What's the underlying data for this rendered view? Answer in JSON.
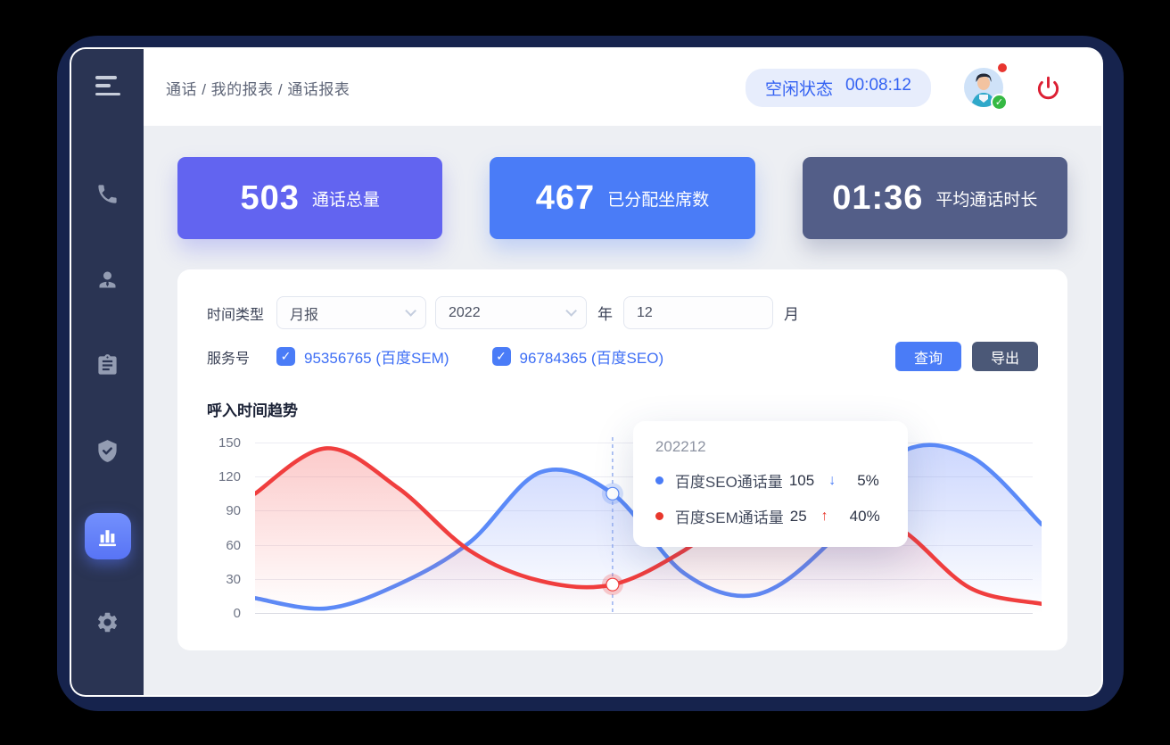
{
  "header": {
    "breadcrumb": "通话 / 我的报表 / 通话报表",
    "status_label": "空闲状态",
    "status_time": "00:08:12"
  },
  "sidebar": {
    "items": [
      {
        "icon": "menu-icon"
      },
      {
        "icon": "phone-icon"
      },
      {
        "icon": "agent-icon"
      },
      {
        "icon": "report-icon"
      },
      {
        "icon": "shield-check-icon"
      },
      {
        "icon": "bar-chart-icon",
        "active": true
      },
      {
        "icon": "gear-icon"
      }
    ]
  },
  "stats": [
    {
      "value": "503",
      "label": "通话总量",
      "color": "#6264f0"
    },
    {
      "value": "467",
      "label": "已分配坐席数",
      "color": "#4a7cf7"
    },
    {
      "value": "01:36",
      "label": "平均通话时长",
      "color": "#535e88"
    }
  ],
  "filters": {
    "time_type_label": "时间类型",
    "time_type_value": "月报",
    "year_value": "2022",
    "year_unit": "年",
    "month_value": "12",
    "month_unit": "月",
    "service_label": "服务号",
    "services": [
      {
        "label": "95356765 (百度SEM)",
        "checked": true
      },
      {
        "label": "96784365 (百度SEO)",
        "checked": true
      }
    ],
    "query_button": "查询",
    "export_button": "导出",
    "check_glyph": "✓"
  },
  "chart_data": {
    "type": "line",
    "title": "呼入时间趋势",
    "xlabel": "",
    "ylabel": "",
    "ylim": [
      0,
      150
    ],
    "yticks": [
      0,
      30,
      60,
      90,
      120,
      150
    ],
    "grid": true,
    "x_count": 12,
    "legend_position": "none",
    "series": [
      {
        "name": "百度SEO通话量",
        "color": "#5b8af8",
        "values": [
          13,
          4,
          25,
          62,
          124,
          105,
          35,
          16,
          60,
          140,
          138,
          78
        ]
      },
      {
        "name": "百度SEM通话量",
        "color": "#f03e3e",
        "values": [
          105,
          145,
          110,
          55,
          28,
          25,
          55,
          100,
          95,
          75,
          22,
          8
        ]
      }
    ],
    "hover_index": 5,
    "tooltip": {
      "title": "202212",
      "rows": [
        {
          "name": "百度SEO通话量",
          "value": "105",
          "arrow": "↓",
          "arrow_color": "#4a7cf7",
          "dot_color": "#4a7cf7",
          "pct": "5%"
        },
        {
          "name": "百度SEM通话量",
          "value": "25",
          "arrow": "↑",
          "arrow_color": "#e8372c",
          "dot_color": "#e8372c",
          "pct": "40%"
        }
      ]
    }
  }
}
